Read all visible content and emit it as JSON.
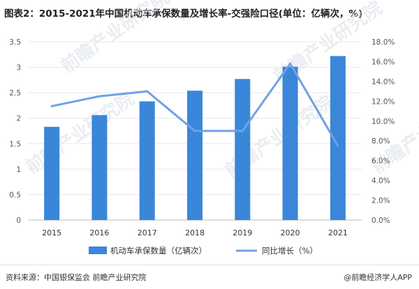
{
  "title": "图表2：2015-2021年中国机动车承保数量及增长率-交强险口径(单位：亿辆次，%)",
  "footer": {
    "source": "资料来源：中国银保监会 前瞻产业研究院",
    "brand": "@前瞻经济学人APP"
  },
  "watermark": {
    "text": "前瞻产业研究院"
  },
  "colors": {
    "bar": "#3a86d9",
    "line": "#6fa1e6",
    "grid": "#e8e8e8",
    "axis": "#bbbbbb"
  },
  "chart_data": {
    "type": "bar",
    "categories": [
      "2015",
      "2016",
      "2017",
      "2018",
      "2019",
      "2020",
      "2021"
    ],
    "series": [
      {
        "name": "机动车承保数量（亿辆次）",
        "type": "bar",
        "axis": "left",
        "values": [
          1.83,
          2.06,
          2.33,
          2.54,
          2.77,
          3.01,
          3.22
        ]
      },
      {
        "name": "同比增长（%）",
        "type": "line",
        "axis": "right",
        "values": [
          11.5,
          12.5,
          13.0,
          9.0,
          9.0,
          15.8,
          7.5
        ]
      }
    ],
    "y_left": {
      "min": 0,
      "max": 3.5,
      "ticks": [
        "0",
        "0.5",
        "1",
        "1.5",
        "2",
        "2.5",
        "3",
        "3.5"
      ]
    },
    "y_right": {
      "min": 0,
      "max": 18,
      "ticks": [
        "0.0%",
        "2.0%",
        "4.0%",
        "6.0%",
        "8.0%",
        "10.0%",
        "12.0%",
        "14.0%",
        "16.0%",
        "18.0%"
      ]
    },
    "grid": true,
    "legend_position": "bottom"
  }
}
